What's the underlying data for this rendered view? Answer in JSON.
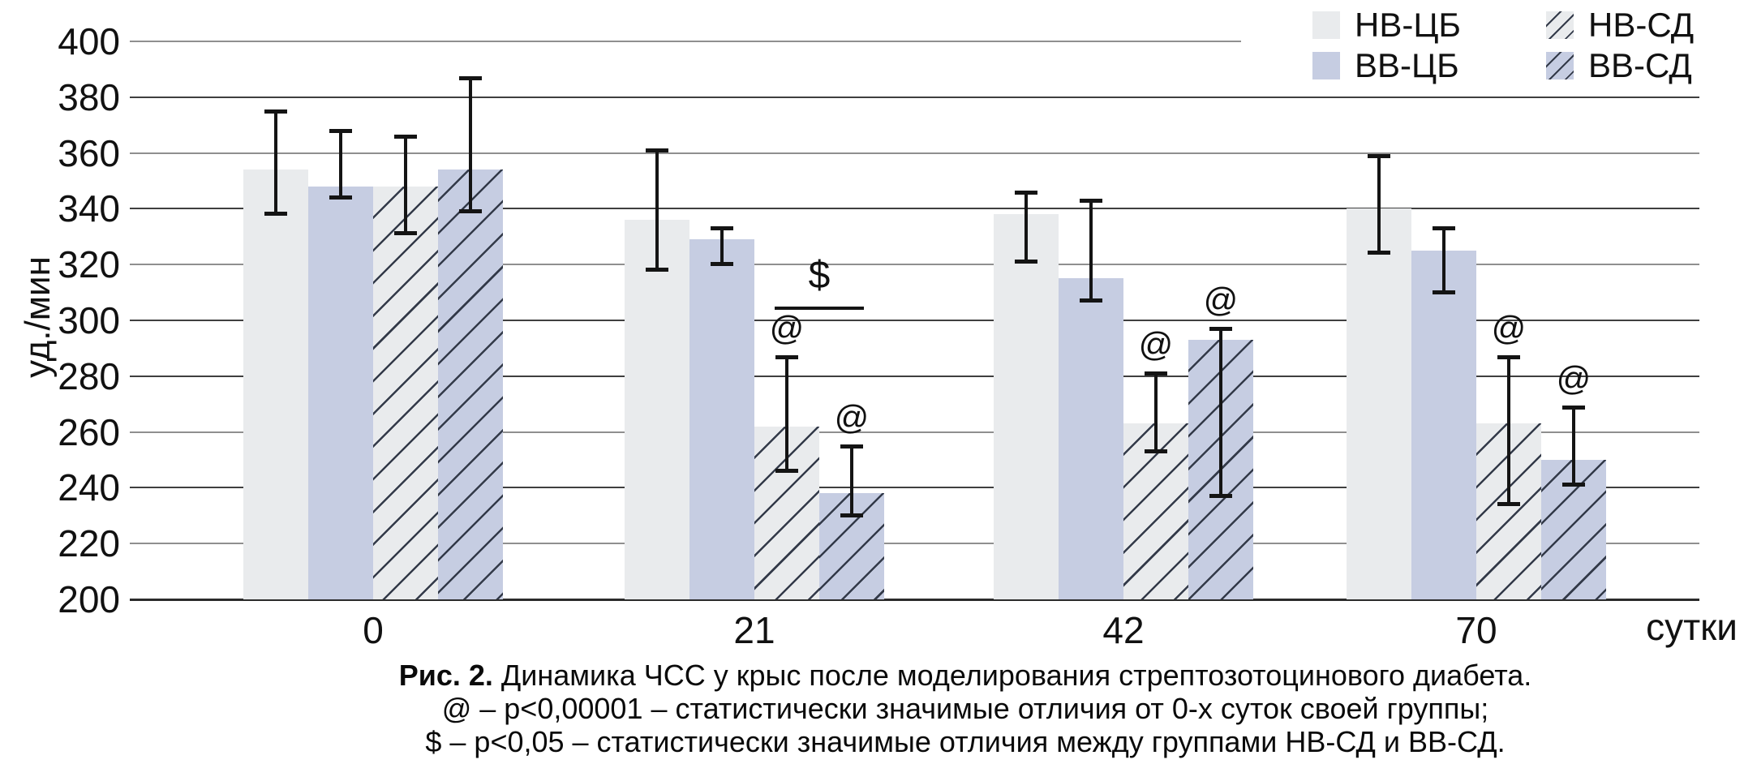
{
  "chart_data": {
    "type": "bar",
    "title": "",
    "ylabel": "уд./мин",
    "xlabel": "сутки",
    "ylim": [
      200,
      400
    ],
    "ytick_step": 20,
    "yticks": [
      400,
      380,
      360,
      340,
      320,
      300,
      280,
      260,
      240,
      220,
      200
    ],
    "grid": "horizontal",
    "categories": [
      "0",
      "21",
      "42",
      "70"
    ],
    "series": [
      {
        "name": "НВ-ЦБ",
        "style": "solid-gray",
        "values": [
          354,
          336,
          338,
          340
        ],
        "err_lo": [
          338,
          318,
          321,
          324
        ],
        "err_hi": [
          375,
          361,
          346,
          359
        ],
        "sig": [
          "",
          "",
          "",
          ""
        ]
      },
      {
        "name": "ВВ-ЦБ",
        "style": "solid-blue",
        "values": [
          348,
          329,
          315,
          325
        ],
        "err_lo": [
          344,
          320,
          307,
          310
        ],
        "err_hi": [
          368,
          333,
          343,
          333
        ],
        "sig": [
          "",
          "",
          "",
          ""
        ]
      },
      {
        "name": "НВ-СД",
        "style": "hatch-gray",
        "values": [
          348,
          262,
          263,
          263
        ],
        "err_lo": [
          331,
          246,
          253,
          234
        ],
        "err_hi": [
          366,
          287,
          281,
          287
        ],
        "sig": [
          "",
          "@",
          "@",
          "@"
        ]
      },
      {
        "name": "ВВ-СД",
        "style": "hatch-blue",
        "values": [
          354,
          238,
          293,
          250
        ],
        "err_lo": [
          339,
          230,
          237,
          241
        ],
        "err_hi": [
          387,
          255,
          297,
          269
        ],
        "sig": [
          "",
          "@",
          "@",
          "@"
        ]
      }
    ],
    "bracket": {
      "category_index": 1,
      "from_series": 2,
      "to_series": 3,
      "y_value": 305,
      "label": "$"
    },
    "legend_position": "top-right"
  },
  "legend_order_note": "row1: НВ-ЦБ | НВ-СД ; row2: ВВ-ЦБ | ВВ-СД",
  "caption": {
    "fig_label": "Рис. 2.",
    "fig_text": " Динамика ЧСС у крыс после моделирования стрептозотоцинового диабета.",
    "note1": "@ – p<0,00001 – статистически значимые отличия от 0-х суток своей группы;",
    "note2": "$ – p<0,05 – статистически значимые отличия между группами НВ-СД и ВВ-СД."
  },
  "colors": {
    "gray_fill": "#e9ebed",
    "blue_fill": "#c6cde2",
    "hatch_line": "#333a49",
    "grid_dark": "#3f3f3f",
    "grid_light": "#8f8f8f",
    "axis": "#2b2b2b",
    "error_bar": "#141414",
    "text": "#111111",
    "background": "#ffffff"
  }
}
